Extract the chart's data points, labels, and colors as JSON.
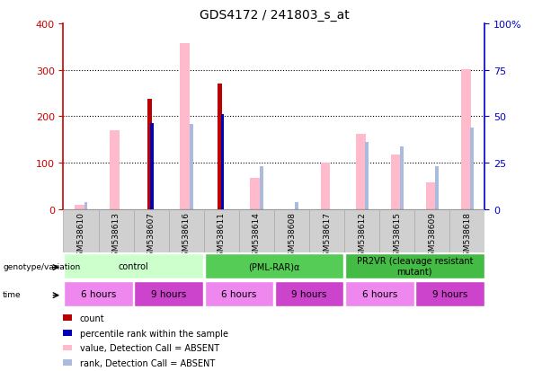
{
  "title": "GDS4172 / 241803_s_at",
  "samples": [
    "GSM538610",
    "GSM538613",
    "GSM538607",
    "GSM538616",
    "GSM538611",
    "GSM538614",
    "GSM538608",
    "GSM538617",
    "GSM538612",
    "GSM538615",
    "GSM538609",
    "GSM538618"
  ],
  "count": [
    null,
    null,
    238,
    null,
    270,
    null,
    null,
    null,
    null,
    null,
    null,
    null
  ],
  "percentile_rank": [
    null,
    null,
    185,
    null,
    205,
    null,
    null,
    null,
    null,
    null,
    null,
    null
  ],
  "value_absent": [
    10,
    170,
    null,
    358,
    null,
    68,
    null,
    100,
    162,
    118,
    58,
    302
  ],
  "rank_absent_pct": [
    4,
    null,
    null,
    46,
    null,
    23,
    4,
    null,
    36,
    34,
    23,
    44
  ],
  "ylim_left": [
    0,
    400
  ],
  "ylim_right": [
    0,
    100
  ],
  "left_ticks": [
    0,
    100,
    200,
    300,
    400
  ],
  "right_ticks": [
    0,
    25,
    50,
    75,
    100
  ],
  "right_tick_labels": [
    "0",
    "25",
    "50",
    "75",
    "100%"
  ],
  "count_color": "#bb0000",
  "percentile_color": "#0000bb",
  "value_absent_color": "#ffbbcc",
  "rank_absent_color": "#aabbdd",
  "genotype_groups": [
    {
      "label": "control",
      "start": 0,
      "end": 4,
      "color": "#ccffcc"
    },
    {
      "label": "(PML-RAR)α",
      "start": 4,
      "end": 8,
      "color": "#55cc55"
    },
    {
      "label": "PR2VR (cleavage resistant\nmutant)",
      "start": 8,
      "end": 12,
      "color": "#44bb44"
    }
  ],
  "time_groups": [
    {
      "label": "6 hours",
      "start": 0,
      "end": 2,
      "color": "#ee88ee"
    },
    {
      "label": "9 hours",
      "start": 2,
      "end": 4,
      "color": "#cc44cc"
    },
    {
      "label": "6 hours",
      "start": 4,
      "end": 6,
      "color": "#ee88ee"
    },
    {
      "label": "9 hours",
      "start": 6,
      "end": 8,
      "color": "#cc44cc"
    },
    {
      "label": "6 hours",
      "start": 8,
      "end": 10,
      "color": "#ee88ee"
    },
    {
      "label": "9 hours",
      "start": 10,
      "end": 12,
      "color": "#cc44cc"
    }
  ],
  "legend_items": [
    {
      "label": "count",
      "color": "#bb0000",
      "marker": "s"
    },
    {
      "label": "percentile rank within the sample",
      "color": "#0000bb",
      "marker": "s"
    },
    {
      "label": "value, Detection Call = ABSENT",
      "color": "#ffbbcc",
      "marker": "s"
    },
    {
      "label": "rank, Detection Call = ABSENT",
      "color": "#aabbdd",
      "marker": "s"
    }
  ],
  "title_fontsize": 10,
  "tick_fontsize": 7,
  "axis_label_color_left": "#cc0000",
  "axis_label_color_right": "#0000cc",
  "sample_bg_color": "#cccccc",
  "sample_border_color": "#999999"
}
